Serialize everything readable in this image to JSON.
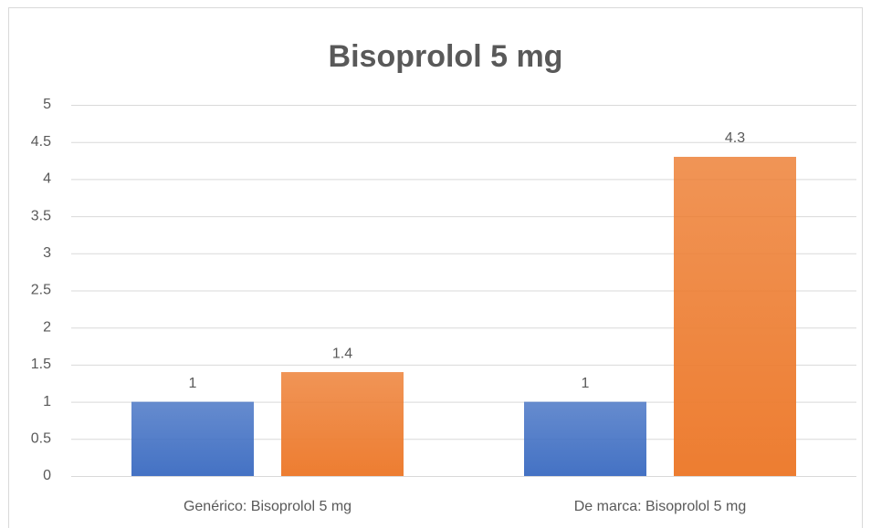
{
  "chart_data": {
    "type": "bar",
    "title": "Bisoprolol 5 mg",
    "categories": [
      "Genérico: Bisoprolol 5 mg",
      "De marca: Bisoprolol 5 mg"
    ],
    "series": [
      {
        "color": "#4472c4",
        "values": [
          1,
          1
        ]
      },
      {
        "color": "#ed7d31",
        "values": [
          1.4,
          4.3
        ]
      }
    ],
    "ylim": [
      0,
      5
    ],
    "yticks": [
      0,
      0.5,
      1,
      1.5,
      2,
      2.5,
      3,
      3.5,
      4,
      4.5,
      5
    ],
    "grid": true
  }
}
